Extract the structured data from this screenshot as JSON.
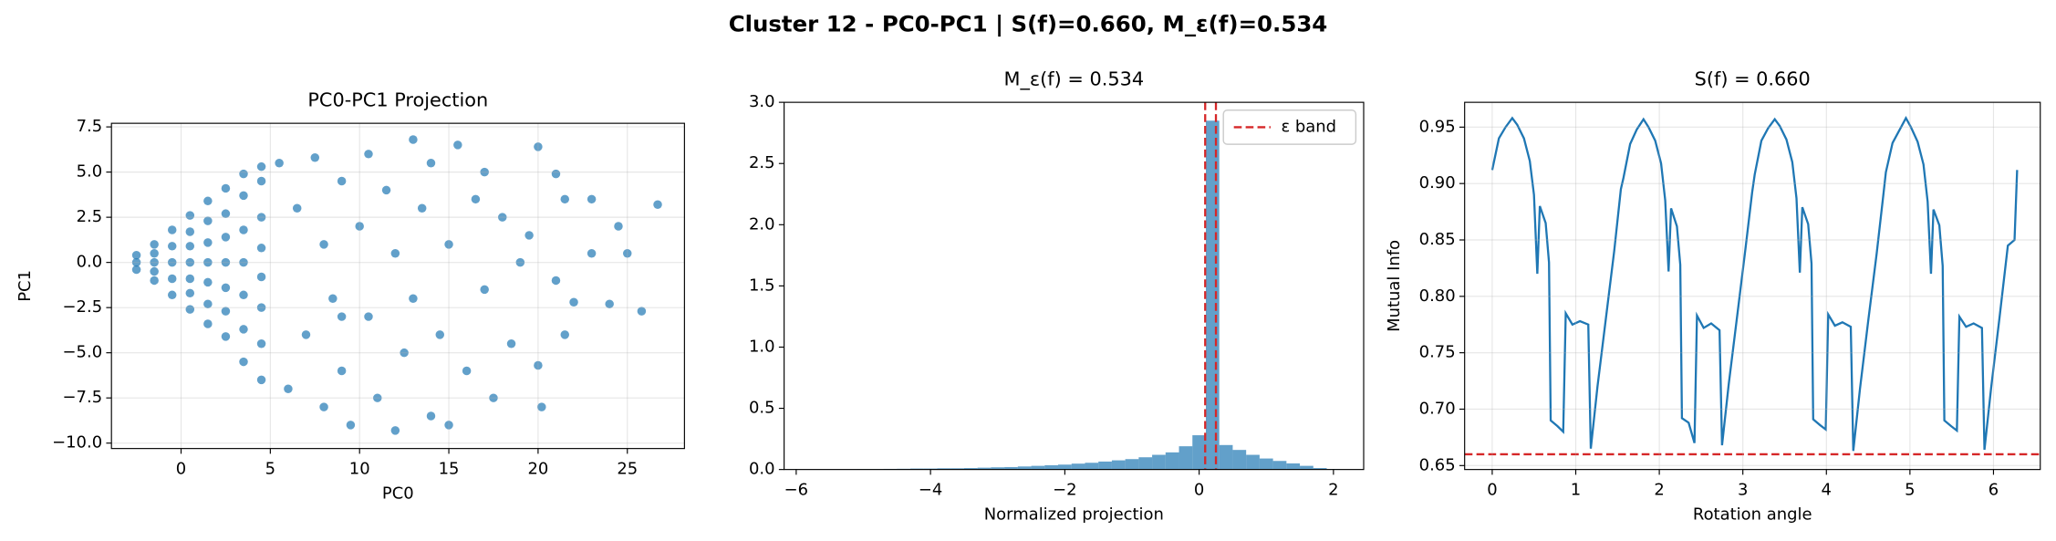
{
  "suptitle": "Cluster 12 - PC0-PC1 | S(f)=0.660, M_ε(f)=0.534",
  "chart_data": [
    {
      "type": "scatter",
      "title": "PC0-PC1 Projection",
      "xlabel": "PC0",
      "ylabel": "PC1",
      "color": "#1f77b4",
      "grid": true,
      "xlim": [
        -3.9,
        28.2
      ],
      "ylim": [
        -10.3,
        7.7
      ],
      "xticks": [
        0,
        5,
        10,
        15,
        20,
        25
      ],
      "yticks": [
        {
          "value": -10,
          "label": "−10.0"
        },
        {
          "value": -7.5,
          "label": "−7.5"
        },
        {
          "value": -5,
          "label": "−5.0"
        },
        {
          "value": -2.5,
          "label": "−2.5"
        },
        {
          "value": 0,
          "label": "0.0"
        },
        2.5,
        {
          "value": 5,
          "label": "5.0"
        },
        7.5
      ],
      "x": [
        -2.5,
        -2.5,
        -2.5,
        -1.5,
        -1.5,
        -1.5,
        -1.5,
        -1.5,
        -0.5,
        -0.5,
        -0.5,
        -0.5,
        -0.5,
        0.5,
        0.5,
        0.5,
        0.5,
        0.5,
        0.5,
        0.5,
        1.5,
        1.5,
        1.5,
        1.5,
        1.5,
        1.5,
        1.5,
        2.5,
        2.5,
        2.5,
        2.5,
        2.5,
        2.5,
        2.5,
        3.5,
        3.5,
        3.5,
        3.5,
        3.5,
        3.5,
        3.5,
        4.5,
        4.5,
        4.5,
        4.5,
        4.5,
        4.5,
        4.5,
        4.5,
        5.5,
        6,
        6.5,
        7,
        7.5,
        8,
        8,
        8.5,
        9,
        9,
        9.5,
        10,
        10.5,
        10.5,
        11,
        11.5,
        12,
        12,
        12.5,
        13,
        13,
        13.5,
        14,
        14,
        14.5,
        15,
        15,
        15.5,
        16,
        16.5,
        17,
        17.5,
        18,
        18.5,
        19,
        19.5,
        20,
        20,
        20.2,
        21,
        21,
        21.5,
        22,
        23,
        23,
        24,
        25,
        24.5,
        25.8,
        26.7,
        21.5,
        17,
        9
      ],
      "y": [
        -0.4,
        0,
        0.4,
        -1,
        -0.5,
        0,
        0.5,
        1,
        -1.8,
        -0.9,
        0,
        0.9,
        1.8,
        -2.6,
        -1.7,
        -0.9,
        0,
        0.9,
        1.7,
        2.6,
        -3.4,
        -2.3,
        -1.1,
        0,
        1.1,
        2.3,
        3.4,
        -4.1,
        -2.7,
        -1.4,
        0,
        1.4,
        2.7,
        4.1,
        -5.5,
        -3.7,
        -1.8,
        0,
        1.8,
        3.7,
        4.9,
        -6.5,
        -4.5,
        -2.5,
        -0.8,
        0.8,
        2.5,
        4.5,
        5.3,
        5.5,
        -7,
        3,
        -4,
        5.8,
        -8,
        1,
        -2,
        4.5,
        -6,
        -9,
        2,
        6,
        -3,
        -7.5,
        4,
        -9.3,
        0.5,
        -5,
        6.8,
        -2,
        3,
        -8.5,
        5.5,
        -4,
        1,
        -9,
        6.5,
        -6,
        3.5,
        -1.5,
        -7.5,
        2.5,
        -4.5,
        0,
        1.5,
        6.4,
        -5.7,
        -8,
        4.9,
        -1,
        3.5,
        -2.2,
        0.5,
        3.5,
        -2.3,
        0.5,
        2,
        -2.7,
        3.2,
        -4,
        5,
        -3
      ]
    },
    {
      "type": "histogram",
      "title": "M_ε(f) = 0.534",
      "xlabel": "Normalized projection",
      "color": "#1f77b4",
      "grid": false,
      "xlim": [
        -6.18,
        2.45
      ],
      "ylim": [
        0,
        3
      ],
      "xticks": [
        {
          "value": -6,
          "label": "−6"
        },
        {
          "value": -4,
          "label": "−4"
        },
        {
          "value": -2,
          "label": "−2"
        },
        0,
        2
      ],
      "yticks": [
        {
          "value": 0,
          "label": "0.0"
        },
        0.5,
        {
          "value": 1,
          "label": "1.0"
        },
        1.5,
        {
          "value": 2,
          "label": "2.0"
        },
        2.5,
        {
          "value": 3,
          "label": "3.0"
        }
      ],
      "bins": [
        -6.1,
        -5.9,
        -5.7,
        -5.5,
        -5.3,
        -5.1,
        -4.9,
        -4.7,
        -4.5,
        -4.3,
        -4.1,
        -3.9,
        -3.7,
        -3.5,
        -3.3,
        -3.1,
        -2.9,
        -2.7,
        -2.5,
        -2.3,
        -2.1,
        -1.9,
        -1.7,
        -1.5,
        -1.3,
        -1.1,
        -0.9,
        -0.7,
        -0.5,
        -0.3,
        -0.1,
        0.1,
        0.3,
        0.5,
        0.7,
        0.9,
        1.1,
        1.3,
        1.5,
        1.7,
        1.9,
        2.1
      ],
      "values": [
        0.002,
        0.002,
        0.002,
        0.002,
        0.002,
        0.003,
        0.003,
        0.005,
        0.006,
        0.008,
        0.008,
        0.01,
        0.01,
        0.012,
        0.015,
        0.018,
        0.02,
        0.025,
        0.03,
        0.035,
        0.04,
        0.048,
        0.055,
        0.065,
        0.075,
        0.085,
        0.1,
        0.12,
        0.14,
        0.19,
        0.28,
        2.85,
        0.2,
        0.16,
        0.12,
        0.09,
        0.07,
        0.05,
        0.03,
        0.012,
        0.004
      ],
      "epsilon_band": {
        "name": "ε band",
        "color": "#d62728",
        "values": [
          0.09,
          0.25
        ]
      },
      "legend": "upper right"
    },
    {
      "type": "line",
      "title": "S(f) = 0.660",
      "xlabel": "Rotation angle",
      "ylabel": "Mutual Info",
      "color": "#1f77b4",
      "grid": true,
      "xlim": [
        -0.33,
        6.56
      ],
      "ylim": [
        0.6465,
        0.972
      ],
      "xticks": [
        0,
        1,
        2,
        3,
        4,
        5,
        6
      ],
      "yticks": [
        0.65,
        {
          "value": 0.7,
          "label": "0.70"
        },
        0.75,
        {
          "value": 0.8,
          "label": "0.80"
        },
        0.85,
        {
          "value": 0.9,
          "label": "0.90"
        },
        0.95
      ],
      "reference_line": {
        "value": 0.66,
        "color": "#d62728"
      },
      "x": [
        0,
        0.08,
        0.16,
        0.24,
        0.3,
        0.38,
        0.45,
        0.5,
        0.54,
        0.57,
        0.64,
        0.68,
        0.7,
        0.78,
        0.85,
        0.88,
        0.96,
        1.05,
        1.15,
        1.18,
        1.26,
        1.36,
        1.46,
        1.54,
        1.571,
        1.651,
        1.731,
        1.811,
        1.871,
        1.951,
        2.021,
        2.071,
        2.111,
        2.141,
        2.211,
        2.251,
        2.271,
        2.351,
        2.421,
        2.451,
        2.531,
        2.621,
        2.721,
        2.751,
        2.831,
        2.931,
        3.031,
        3.111,
        3.142,
        3.222,
        3.302,
        3.382,
        3.442,
        3.522,
        3.592,
        3.642,
        3.682,
        3.712,
        3.782,
        3.822,
        3.842,
        3.922,
        3.992,
        4.022,
        4.102,
        4.192,
        4.292,
        4.322,
        4.402,
        4.502,
        4.602,
        4.682,
        4.712,
        4.792,
        4.872,
        4.952,
        5.012,
        5.092,
        5.162,
        5.212,
        5.252,
        5.282,
        5.352,
        5.392,
        5.412,
        5.492,
        5.562,
        5.592,
        5.672,
        5.762,
        5.862,
        5.892,
        5.972,
        6.072,
        6.172,
        6.252,
        6.283
      ],
      "values": [
        0.912,
        0.94,
        0.95,
        0.958,
        0.952,
        0.94,
        0.92,
        0.89,
        0.82,
        0.88,
        0.865,
        0.83,
        0.69,
        0.685,
        0.68,
        0.785,
        0.775,
        0.778,
        0.775,
        0.665,
        0.72,
        0.78,
        0.84,
        0.895,
        0.905,
        0.935,
        0.948,
        0.957,
        0.95,
        0.938,
        0.918,
        0.885,
        0.822,
        0.878,
        0.862,
        0.828,
        0.692,
        0.688,
        0.67,
        0.783,
        0.772,
        0.776,
        0.77,
        0.668,
        0.722,
        0.782,
        0.842,
        0.892,
        0.908,
        0.938,
        0.949,
        0.957,
        0.951,
        0.939,
        0.919,
        0.887,
        0.821,
        0.879,
        0.864,
        0.829,
        0.691,
        0.686,
        0.682,
        0.784,
        0.774,
        0.777,
        0.773,
        0.663,
        0.718,
        0.779,
        0.838,
        0.89,
        0.91,
        0.936,
        0.947,
        0.958,
        0.95,
        0.937,
        0.917,
        0.884,
        0.82,
        0.877,
        0.863,
        0.827,
        0.69,
        0.685,
        0.681,
        0.782,
        0.773,
        0.776,
        0.772,
        0.664,
        0.719,
        0.781,
        0.845,
        0.85,
        0.912
      ]
    }
  ]
}
